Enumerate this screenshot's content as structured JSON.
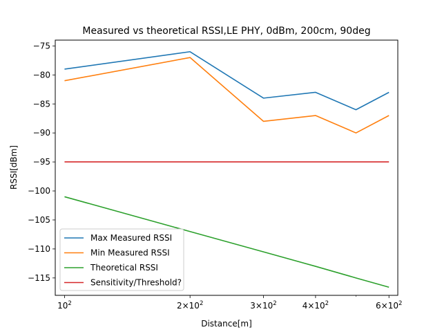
{
  "chart_data": {
    "type": "line",
    "title": "Measured vs theoretical RSSI,LE PHY, 0dBm, 200cm, 90deg",
    "xlabel": "Distance[m]",
    "ylabel": "RSSI[dBm]",
    "xscale": "log",
    "xlim": [
      95,
      630
    ],
    "ylim": [
      -118,
      -74
    ],
    "x": [
      100,
      200,
      300,
      400,
      500,
      600
    ],
    "xticks": [
      {
        "value": 100,
        "base": "10",
        "exp": "2"
      },
      {
        "value": 200,
        "base": "2×10",
        "exp": "2"
      },
      {
        "value": 300,
        "base": "3×10",
        "exp": "2"
      },
      {
        "value": 400,
        "base": "4×10",
        "exp": "2"
      },
      {
        "value": 600,
        "base": "6×10",
        "exp": "2"
      }
    ],
    "yticks": [
      -75,
      -80,
      -85,
      -90,
      -95,
      -100,
      -105,
      -110,
      -115
    ],
    "ytick_labels": [
      "−75",
      "−80",
      "−85",
      "−90",
      "−95",
      "−100",
      "−105",
      "−110",
      "−115"
    ],
    "grid": false,
    "legend_position": "lower-left",
    "series": [
      {
        "name": "Max Measured RSSI",
        "color": "#1f77b4",
        "values": [
          -79,
          -76,
          -84,
          -83,
          -86,
          -83
        ]
      },
      {
        "name": "Min Measured RSSI",
        "color": "#ff7f0e",
        "values": [
          -81,
          -77,
          -88,
          -87,
          -90,
          -87
        ]
      },
      {
        "name": "Theoretical RSSI",
        "color": "#2ca02c",
        "values": [
          -101,
          -107,
          -110.5,
          -113,
          -115,
          -116.6
        ]
      },
      {
        "name": "Sensitivity/Threshold?",
        "color": "#d62728",
        "values": [
          -95,
          -95,
          -95,
          -95,
          -95,
          -95
        ]
      }
    ]
  }
}
